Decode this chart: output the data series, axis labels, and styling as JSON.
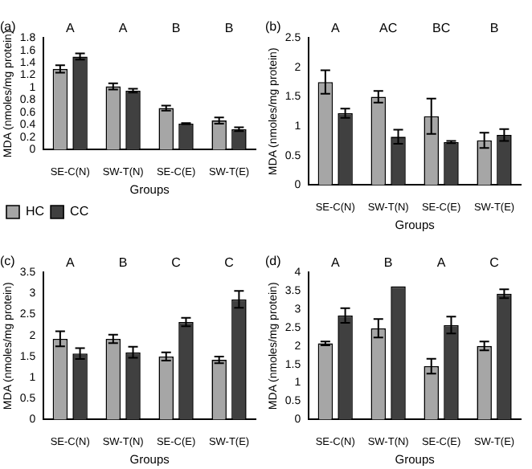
{
  "chart_data": [
    {
      "type": "bar",
      "title": "(a)",
      "xlabel": "Groups",
      "ylabel": "MDA (nmoles/mg protein)",
      "categories": [
        "SE-C(N)",
        "SW-T(N)",
        "SE-C(E)",
        "SW-T(E)"
      ],
      "series": [
        {
          "name": "HC",
          "color": "#a6a6a6",
          "values": [
            1.3,
            1.02,
            0.67,
            0.47
          ],
          "errors": [
            0.06,
            0.05,
            0.04,
            0.05
          ]
        },
        {
          "name": "CC",
          "color": "#404040",
          "values": [
            1.5,
            0.95,
            0.42,
            0.33
          ],
          "errors": [
            0.05,
            0.03,
            0.01,
            0.03
          ]
        }
      ],
      "ylim": [
        0,
        1.8
      ],
      "yticks": [
        0,
        0.2,
        0.4,
        0.6,
        0.8,
        1,
        1.2,
        1.4,
        1.6,
        1.8
      ],
      "grid": false,
      "legend": "bottom left",
      "annotations": [
        "A",
        "A",
        "B",
        "B"
      ]
    },
    {
      "type": "bar",
      "title": "(b)",
      "xlabel": "Groups",
      "ylabel": "MDA (nmoles/mg protein)",
      "categories": [
        "SE-C(N)",
        "SW-T(N)",
        "SE-C(E)",
        "SW-T(E)"
      ],
      "series": [
        {
          "color": "#a6a6a6",
          "values": [
            1.75,
            1.5,
            1.17,
            0.76
          ],
          "errors": [
            0.2,
            0.1,
            0.3,
            0.13
          ]
        },
        {
          "color": "#404040",
          "values": [
            1.22,
            0.82,
            0.73,
            0.85
          ],
          "errors": [
            0.08,
            0.12,
            0.02,
            0.1
          ]
        }
      ],
      "ylim": [
        0,
        2.5
      ],
      "yticks": [
        0,
        0.5,
        1,
        1.5,
        2,
        2.5
      ],
      "grid": false,
      "annotations": [
        "A",
        "AC",
        "BC",
        "B"
      ]
    },
    {
      "type": "bar",
      "title": "(c)",
      "xlabel": "Groups",
      "ylabel": "MDA (nmoles/mg protein)",
      "categories": [
        "SE-C(N)",
        "SW-T(N)",
        "SE-C(E)",
        "SW-T(E)"
      ],
      "series": [
        {
          "color": "#a6a6a6",
          "values": [
            1.92,
            1.92,
            1.5,
            1.42
          ],
          "errors": [
            0.18,
            0.1,
            0.1,
            0.08
          ]
        },
        {
          "color": "#404040",
          "values": [
            1.57,
            1.6,
            2.32,
            2.86
          ],
          "errors": [
            0.13,
            0.13,
            0.1,
            0.2
          ]
        }
      ],
      "ylim": [
        0,
        3.5
      ],
      "yticks": [
        0,
        0.5,
        1,
        1.5,
        2,
        2.5,
        3,
        3.5
      ],
      "grid": false,
      "annotations": [
        "A",
        "B",
        "C",
        "C"
      ]
    },
    {
      "type": "bar",
      "title": "(d)",
      "xlabel": "Groups",
      "ylabel": "MDA (nmoles/mg protein)",
      "categories": [
        "SE-C(N)",
        "SW-T(N)",
        "SE-C(E)",
        "SW-T(E)"
      ],
      "series": [
        {
          "color": "#a6a6a6",
          "values": [
            2.07,
            2.48,
            1.45,
            2.0
          ],
          "errors": [
            0.05,
            0.25,
            0.2,
            0.12
          ]
        },
        {
          "color": "#404040",
          "values": [
            2.83,
            3.62,
            2.57,
            3.42
          ],
          "errors": [
            0.2,
            null,
            0.23,
            0.12
          ]
        }
      ],
      "ylim": [
        0,
        4
      ],
      "yticks": [
        0,
        0.5,
        1,
        1.5,
        2,
        2.5,
        3,
        3.5,
        4
      ],
      "grid": false,
      "annotations": [
        "A",
        "B",
        "A",
        "C"
      ]
    }
  ]
}
